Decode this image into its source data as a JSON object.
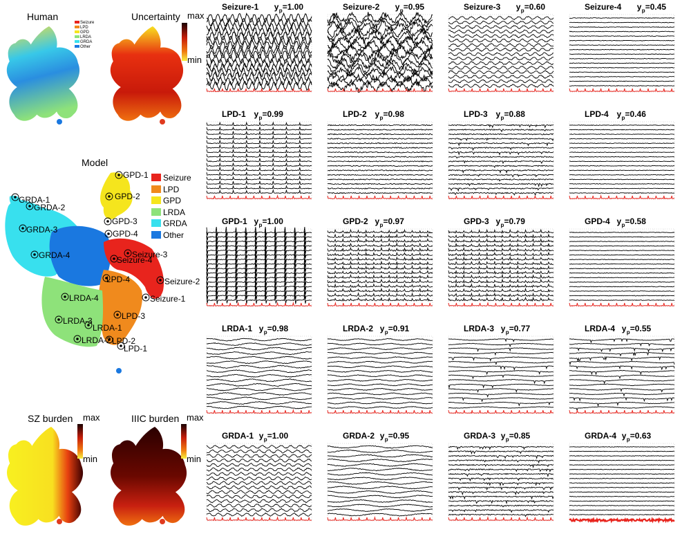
{
  "colors": {
    "Seizure": "#e8241d",
    "LPD": "#f08a1d",
    "GPD": "#f5e51d",
    "LRDA": "#8ee27a",
    "GRDA": "#38e0ee",
    "Other": "#1a78e0",
    "dot_blue": "#1a78e0",
    "dot_red": "#e03a1e",
    "ref_trace": "#e8241d"
  },
  "left": {
    "human_title": "Human",
    "uncertainty_title": "Uncertainty",
    "model_title": "Model",
    "sz_title": "SZ burden",
    "iiic_title": "IIIC burden",
    "cb_max": "max",
    "cb_min": "min",
    "legend": [
      "Seizure",
      "LPD",
      "GPD",
      "LRDA",
      "GRDA",
      "Other"
    ],
    "points": [
      {
        "label": "GPD-1"
      },
      {
        "label": "GPD-2"
      },
      {
        "label": "GPD-3"
      },
      {
        "label": "GPD-4"
      },
      {
        "label": "GRDA-1"
      },
      {
        "label": "GRDA-2"
      },
      {
        "label": "GRDA-3"
      },
      {
        "label": "GRDA-4"
      },
      {
        "label": "Seizure-3"
      },
      {
        "label": "Seizure-4"
      },
      {
        "label": "Seizure-2"
      },
      {
        "label": "Seizure-1"
      },
      {
        "label": "LPD-4"
      },
      {
        "label": "LRDA-4"
      },
      {
        "label": "LPD-3"
      },
      {
        "label": "LRDA-3"
      },
      {
        "label": "LRDA-1"
      },
      {
        "label": "LRDA-2"
      },
      {
        "label": "LPD-2"
      },
      {
        "label": "LPD-1"
      }
    ]
  },
  "panels": [
    {
      "name": "Seizure-1",
      "yp": "=1.00"
    },
    {
      "name": "Seizure-2",
      "yp": "=0.95"
    },
    {
      "name": "Seizure-3",
      "yp": "=0.60"
    },
    {
      "name": "Seizure-4",
      "yp": "=0.45"
    },
    {
      "name": "LPD-1",
      "yp": "=0.99"
    },
    {
      "name": "LPD-2",
      "yp": "=0.98"
    },
    {
      "name": "LPD-3",
      "yp": "=0.88"
    },
    {
      "name": "LPD-4",
      "yp": "=0.46"
    },
    {
      "name": "GPD-1",
      "yp": "=1.00"
    },
    {
      "name": "GPD-2",
      "yp": "=0.97"
    },
    {
      "name": "GPD-3",
      "yp": "=0.79"
    },
    {
      "name": "GPD-4",
      "yp": "=0.58"
    },
    {
      "name": "LRDA-1",
      "yp": "=0.98"
    },
    {
      "name": "LRDA-2",
      "yp": "=0.91"
    },
    {
      "name": "LRDA-3",
      "yp": "=0.77"
    },
    {
      "name": "LRDA-4",
      "yp": "=0.55"
    },
    {
      "name": "GRDA-1",
      "yp": "=1.00"
    },
    {
      "name": "GRDA-2",
      "yp": "=0.95"
    },
    {
      "name": "GRDA-3",
      "yp": "=0.85"
    },
    {
      "name": "GRDA-4",
      "yp": "=0.63"
    }
  ],
  "yp_symbol": "y",
  "yp_sub": "p"
}
